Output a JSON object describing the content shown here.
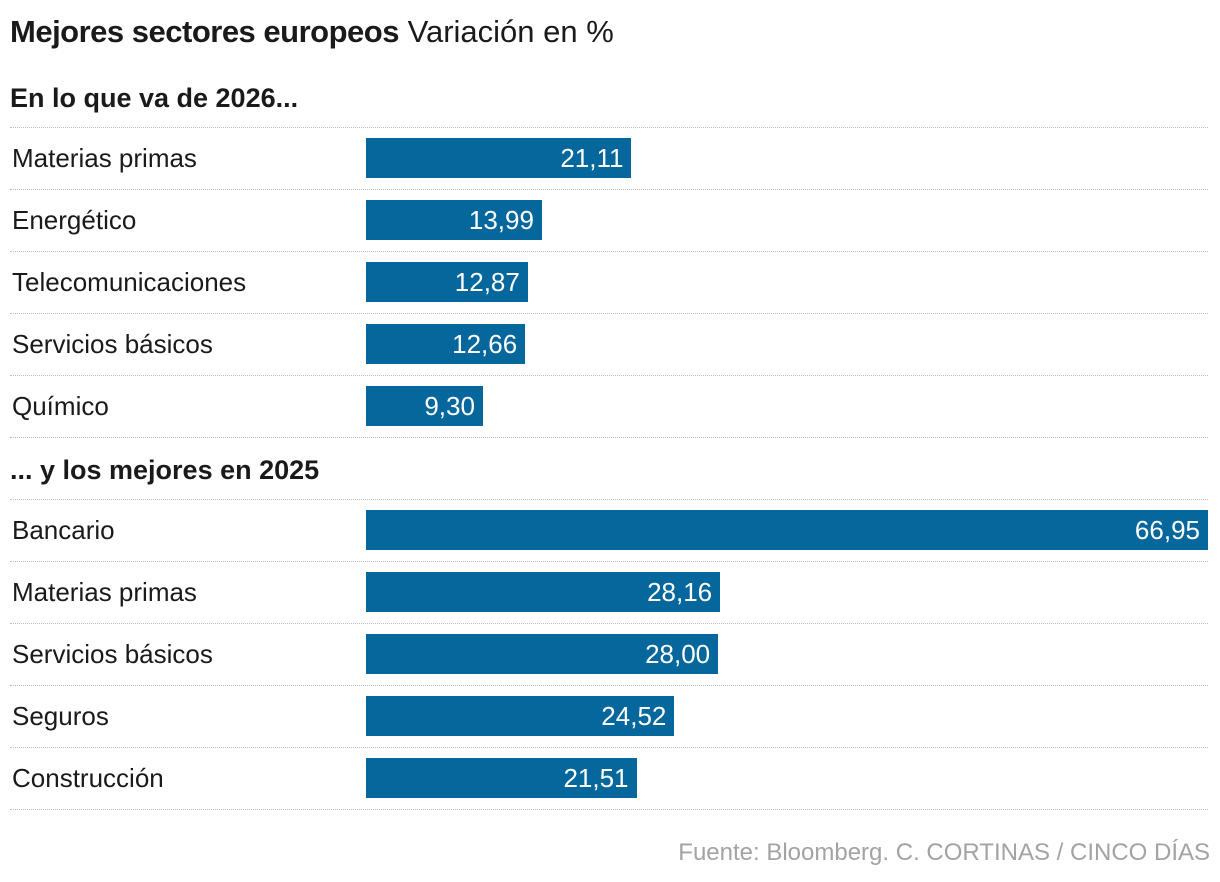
{
  "header": {
    "title": "Mejores sectores europeos",
    "subtitle": "Variación en %"
  },
  "colors": {
    "bar": "#05679c",
    "bar_text": "#ffffff",
    "source_text": "#a3a3a3"
  },
  "chart_data": [
    {
      "type": "bar",
      "orientation": "horizontal",
      "title": "En lo que va de 2026...",
      "categories": [
        "Materias primas",
        "Energético",
        "Telecomunicaciones",
        "Servicios básicos",
        "Químico"
      ],
      "values": [
        21.11,
        13.99,
        12.87,
        12.66,
        9.3
      ],
      "value_labels": [
        "21,11",
        "13,99",
        "12,87",
        "12,66",
        "9,30"
      ],
      "xlim": [
        0,
        66.95
      ]
    },
    {
      "type": "bar",
      "orientation": "horizontal",
      "title": "... y los mejores en 2025",
      "categories": [
        "Bancario",
        "Materias primas",
        "Servicios básicos",
        "Seguros",
        "Construcción"
      ],
      "values": [
        66.95,
        28.16,
        28.0,
        24.52,
        21.51
      ],
      "value_labels": [
        "66,95",
        "28,16",
        "28,00",
        "24,52",
        "21,51"
      ],
      "xlim": [
        0,
        66.95
      ]
    }
  ],
  "footer": {
    "source": "Fuente: Bloomberg. C. CORTINAS / CINCO DÍAS"
  }
}
